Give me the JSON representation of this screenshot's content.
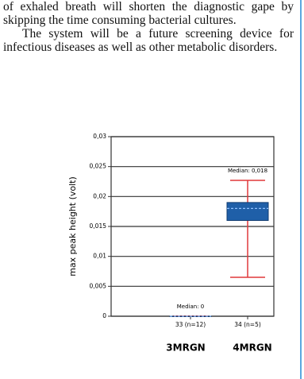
{
  "document": {
    "paragraphs": [
      "of exhaled breath will shorten the diagnostic gape by skipping the time consuming bacterial cultures.",
      "The system will be a future screening device for infectious diseases as well as other metabolic disorders."
    ]
  },
  "chart_data": {
    "type": "box",
    "ylabel": "max peak height (volt)",
    "categories": [
      "33 (n=12)",
      "34 (n=5)"
    ],
    "group_labels": [
      "3MRGN",
      "4MRGN"
    ],
    "ylim": [
      0,
      0.03
    ],
    "yticks": [
      0,
      {
        "value": 0.005,
        "label": "0,005"
      },
      {
        "value": 0.01,
        "label": "0,01"
      },
      {
        "value": 0.015,
        "label": "0,015"
      },
      {
        "value": 0.02,
        "label": "0,02"
      },
      {
        "value": 0.025,
        "label": "0,025"
      },
      {
        "value": 0.03,
        "label": "0,03"
      }
    ],
    "grid": true,
    "box_color": "#1f5fa8",
    "whisker_color": "#e0383a",
    "boxes": [
      {
        "min": 0,
        "q1": 0,
        "median": 0,
        "q3": 0,
        "max": 0,
        "median_label": "Median: 0"
      },
      {
        "min": 0.0065,
        "q1": 0.016,
        "median": 0.018,
        "q3": 0.019,
        "max": 0.0227,
        "median_label": "Median: 0,018"
      }
    ]
  }
}
